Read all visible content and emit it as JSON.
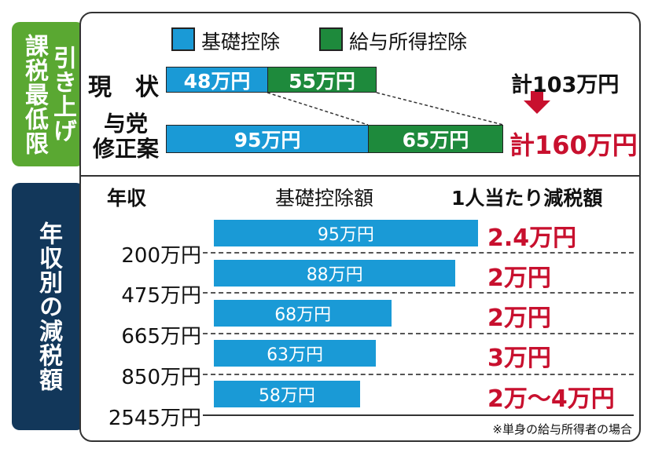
{
  "tabs": {
    "top_col1": "課税最低限",
    "top_col2": "引き上げ",
    "bottom": "年収別の減税額"
  },
  "colors": {
    "basic": "#1a9ad6",
    "salary": "#1e8a3c",
    "accent": "#c8102e",
    "tab_top": "#5aa832",
    "tab_bottom": "#12375a"
  },
  "legend": {
    "basic": "基礎控除",
    "salary": "給与所得控除"
  },
  "top": {
    "rows": [
      {
        "label": "現　状",
        "basic": 48,
        "salary": 55,
        "basic_label": "48万円",
        "salary_label": "55万円",
        "total": "計103万円"
      },
      {
        "label": "与党\n修正案",
        "basic": 95,
        "salary": 65,
        "basic_label": "95万円",
        "salary_label": "65万円",
        "total": "計160万円"
      }
    ]
  },
  "chart_data": {
    "type": "bar",
    "title": "年収別の減税額",
    "headers": {
      "income": "年収",
      "deduction": "基礎控除額",
      "tax_cut": "1人当たり減税額"
    },
    "boundaries": [
      "200万円",
      "475万円",
      "665万円",
      "850万円",
      "2545万円"
    ],
    "values": [
      95,
      88,
      68,
      63,
      58
    ],
    "value_labels": [
      "95万円",
      "88万円",
      "68万円",
      "63万円",
      "58万円"
    ],
    "tax_cuts": [
      "2.4万円",
      "2万円",
      "2万円",
      "3万円",
      "2万～4万円"
    ],
    "note": "※単身の給与所得者の場合"
  }
}
